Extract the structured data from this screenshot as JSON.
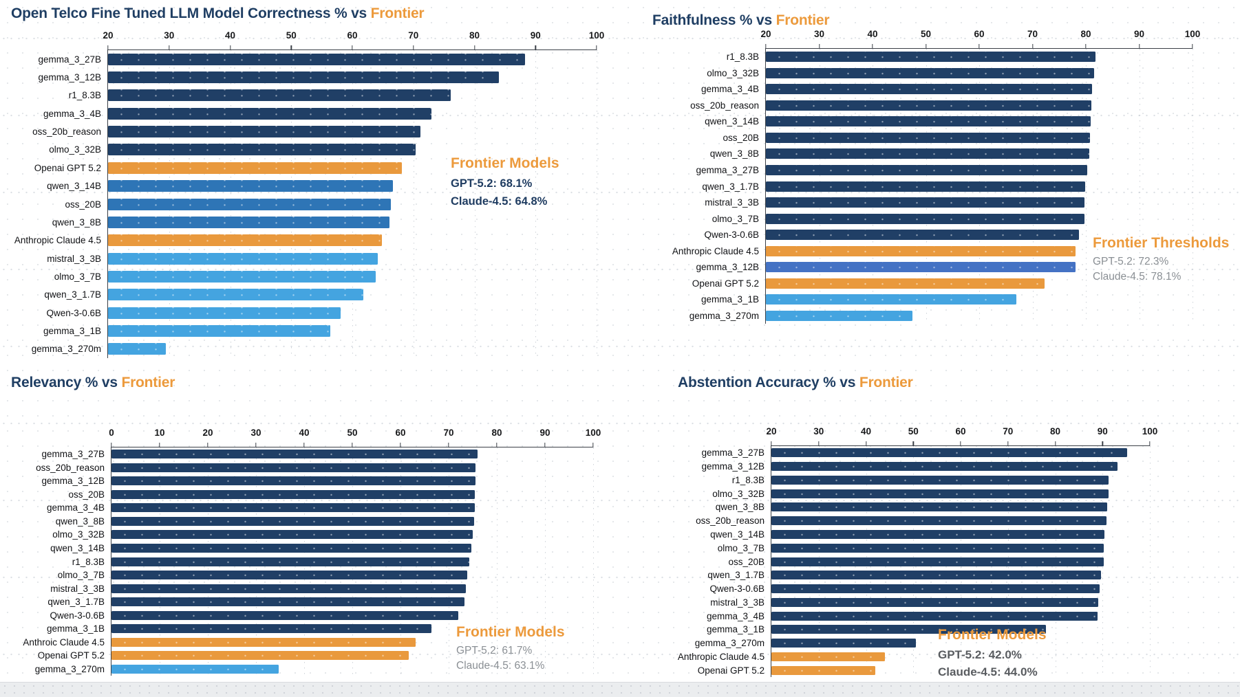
{
  "colors": {
    "navy": "#203F66",
    "blue": "#2E75B6",
    "light": "#44A4E0",
    "cornflower": "#4472C4",
    "orange": "#E9993D",
    "title_navy": "#1F3E63",
    "title_accent": "#EC9A3C",
    "annotation_gray": "#8a8f94",
    "annotation_navy": "#1F3C61"
  },
  "chart_data": [
    {
      "id": "correctness",
      "type": "bar",
      "orientation": "horizontal",
      "title_main": "Open Telco Fine Tuned LLM Model Correctness % vs ",
      "title_accent": "Frontier",
      "xlabel": "",
      "ylabel": "",
      "xlim": [
        20,
        100
      ],
      "xticks": [
        20,
        30,
        40,
        50,
        60,
        70,
        80,
        90,
        100
      ],
      "grid": "dotted-vertical",
      "categories": [
        "gemma_3_27B",
        "gemma_3_12B",
        "r1_8.3B",
        "gemma_3_4B",
        "oss_20b_reason",
        "olmo_3_32B",
        "Openai GPT 5.2",
        "qwen_3_14B",
        "oss_20B",
        "qwen_3_8B",
        "Anthropic Claude 4.5",
        "mistral_3_3B",
        "olmo_3_7B",
        "qwen_3_1.7B",
        "Qwen-3-0.6B",
        "gemma_3_1B",
        "gemma_3_270m"
      ],
      "values": [
        88.3,
        84.0,
        76.1,
        73.0,
        71.2,
        70.4,
        68.1,
        66.7,
        66.3,
        66.1,
        64.8,
        64.2,
        63.8,
        61.8,
        58.1,
        56.4,
        29.5
      ],
      "bar_colors": [
        "navy",
        "navy",
        "navy",
        "navy",
        "navy",
        "navy",
        "orange",
        "blue",
        "blue",
        "blue",
        "orange",
        "light",
        "light",
        "light",
        "light",
        "light",
        "light"
      ],
      "annotation": {
        "heading": "Frontier Models",
        "lines": [
          "GPT-5.2: 68.1%",
          "Claude-4.5: 64.8%"
        ],
        "style": "navy-bold"
      }
    },
    {
      "id": "faithfulness",
      "type": "bar",
      "orientation": "horizontal",
      "title_main": "Faithfulness % vs ",
      "title_accent": "Frontier",
      "xlabel": "",
      "ylabel": "",
      "xlim": [
        20,
        100
      ],
      "xticks": [
        20,
        30,
        40,
        50,
        60,
        70,
        80,
        90,
        100
      ],
      "grid": "dotted-vertical",
      "categories": [
        "r1_8.3B",
        "olmo_3_32B",
        "gemma_3_4B",
        "oss_20b_reason",
        "qwen_3_14B",
        "oss_20B",
        "qwen_3_8B",
        "gemma_3_27B",
        "qwen_3_1.7B",
        "mistral_3_3B",
        "olmo_3_7B",
        "Qwen-3-0.6B",
        "Anthropic Claude 4.5",
        "gemma_3_12B",
        "Openai GPT 5.2",
        "gemma_3_1B",
        "gemma_3_270m"
      ],
      "values": [
        81.8,
        81.5,
        81.2,
        81.0,
        80.9,
        80.8,
        80.6,
        80.2,
        79.9,
        79.8,
        79.7,
        78.7,
        78.1,
        78.0,
        72.3,
        67.0,
        47.5
      ],
      "bar_colors": [
        "navy",
        "navy",
        "navy",
        "navy",
        "navy",
        "navy",
        "navy",
        "navy",
        "navy",
        "navy",
        "navy",
        "navy",
        "orange",
        "cornflower",
        "orange",
        "light",
        "light"
      ],
      "annotation": {
        "heading": "Frontier Thresholds",
        "lines": [
          "GPT-5.2: 72.3%",
          "Claude-4.5: 78.1%"
        ],
        "style": "gray"
      }
    },
    {
      "id": "relevancy",
      "type": "bar",
      "orientation": "horizontal",
      "title_main": "Relevancy % vs ",
      "title_accent": "Frontier",
      "xlabel": "",
      "ylabel": "",
      "xlim": [
        0,
        100
      ],
      "xticks": [
        0,
        10,
        20,
        30,
        40,
        50,
        60,
        70,
        80,
        90,
        100
      ],
      "grid": "dotted-vertical",
      "categories": [
        "gemma_3_27B",
        "oss_20b_reason",
        "gemma_3_12B",
        "oss_20B",
        "gemma_3_4B",
        "qwen_3_8B",
        "olmo_3_32B",
        "qwen_3_14B",
        "r1_8.3B",
        "olmo_3_7B",
        "mistral_3_3B",
        "qwen_3_1.7B",
        "Qwen-3-0.6B",
        "gemma_3_1B",
        "Anthroic Claude 4.5",
        "Openai GPT 5.2",
        "gemma_3_270m"
      ],
      "values": [
        76.0,
        75.6,
        75.5,
        75.4,
        75.4,
        75.3,
        75.0,
        74.7,
        74.3,
        73.9,
        73.6,
        73.3,
        72.0,
        66.4,
        63.1,
        61.7,
        34.7
      ],
      "bar_colors": [
        "navy",
        "navy",
        "navy",
        "navy",
        "navy",
        "navy",
        "navy",
        "navy",
        "navy",
        "navy",
        "navy",
        "navy",
        "navy",
        "navy",
        "orange",
        "orange",
        "light"
      ],
      "annotation": {
        "heading": "Frontier Models",
        "lines": [
          "GPT-5.2: 61.7%",
          "Claude-4.5: 63.1%"
        ],
        "style": "gray"
      }
    },
    {
      "id": "abstention-accuracy",
      "type": "bar",
      "orientation": "horizontal",
      "title_main": "Abstention Accuracy % vs ",
      "title_accent": "Frontier",
      "xlabel": "",
      "ylabel": "",
      "xlim": [
        20,
        100
      ],
      "xticks": [
        20,
        30,
        40,
        50,
        60,
        70,
        80,
        90,
        100
      ],
      "grid": "dotted-vertical",
      "categories": [
        "gemma_3_27B",
        "gemma_3_12B",
        "r1_8.3B",
        "olmo_3_32B",
        "qwen_3_8B",
        "oss_20b_reason",
        "qwen_3_14B",
        "olmo_3_7B",
        "oss_20B",
        "qwen_3_1.7B",
        "Qwen-3-0.6B",
        "mistral_3_3B",
        "gemma_3_4B",
        "gemma_3_1B",
        "gemma_3_270m",
        "Anthropic Claude 4.5",
        "Openai GPT 5.2"
      ],
      "values": [
        95.2,
        93.2,
        91.3,
        91.2,
        91.0,
        90.8,
        90.4,
        90.3,
        90.2,
        89.6,
        89.4,
        89.1,
        88.9,
        78.0,
        50.5,
        44.0,
        42.0
      ],
      "bar_colors": [
        "navy",
        "navy",
        "navy",
        "navy",
        "navy",
        "navy",
        "navy",
        "navy",
        "navy",
        "navy",
        "navy",
        "navy",
        "navy",
        "navy",
        "navy",
        "orange",
        "orange"
      ],
      "annotation": {
        "heading": "Frontier Models",
        "lines": [
          "GPT-5.2: 42.0%",
          "Claude-4.5: 44.0%"
        ],
        "style": "gray-bold"
      }
    }
  ]
}
